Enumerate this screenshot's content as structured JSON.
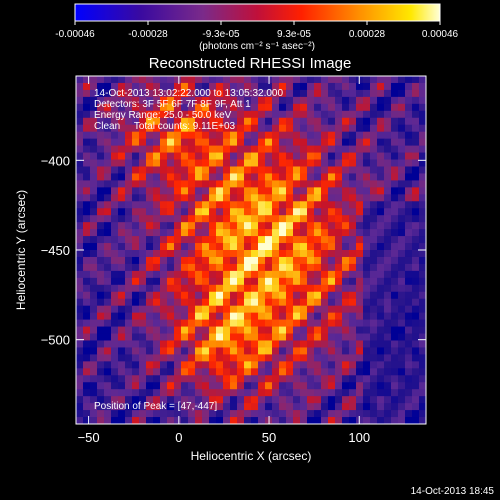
{
  "colorbar": {
    "tick_labels": [
      "-0.00046",
      "-0.00028",
      "-9.3e-05",
      "9.3e-05",
      "0.00028",
      "0.00046"
    ],
    "unit_label": "(photons cm⁻² s⁻¹ asec⁻²)"
  },
  "chart_data": {
    "type": "heatmap",
    "title": "Reconstructed RHESSI Image",
    "xlabel": "Heliocentric X (arcsec)",
    "ylabel": "Heliocentric Y (arcsec)",
    "xlim": [
      -57,
      137
    ],
    "ylim": [
      -547,
      -353
    ],
    "x_ticks": [
      -50,
      0,
      50,
      100
    ],
    "y_ticks": [
      -400,
      -450,
      -500
    ],
    "x_tick_labels": [
      "−50",
      "0",
      "50",
      "100"
    ],
    "y_tick_labels": [
      "−400",
      "−450",
      "−500"
    ],
    "value_range": [
      -0.00046,
      0.00046
    ],
    "colormap": [
      "#0000ff",
      "#4b0082",
      "#8b2a9a",
      "#ff0000",
      "#ff8000",
      "#ffff00",
      "#ffffff"
    ],
    "peak": [
      47,
      -447
    ],
    "annotations": [
      "14-Oct-2013 13:02:22.000 to 13:05:32.000",
      "Detectors: 3F 5F 6F 7F 8F 9F, Att 1",
      "Energy Range: 25.0 - 50.0 keV",
      "Clean     Total counts: 9.11E+03"
    ],
    "peak_label": "Position of Peak = [47,-447]"
  },
  "footer": {
    "timestamp": "14-Oct-2013 18:45"
  }
}
